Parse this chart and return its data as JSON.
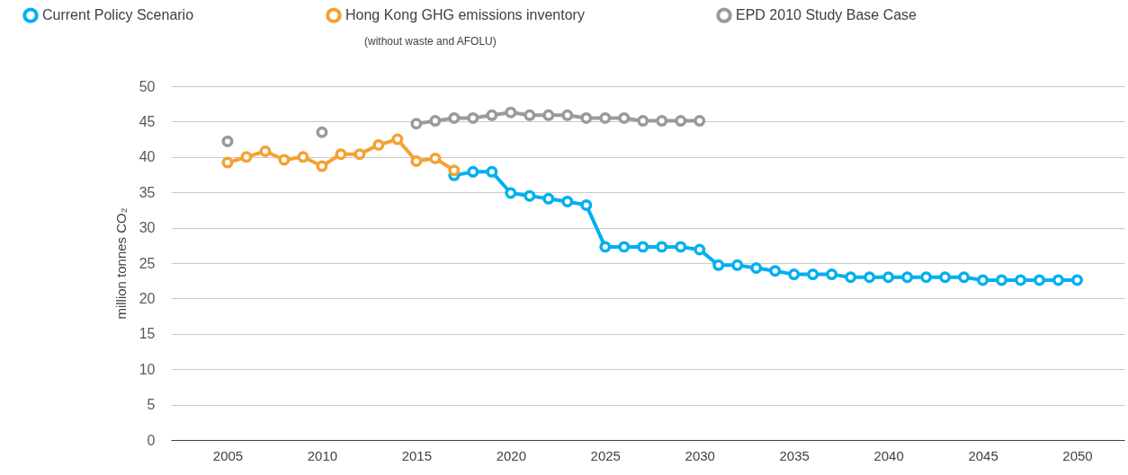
{
  "chart_data": {
    "type": "line",
    "ylabel": "million tonnes CO₂",
    "annotations": [
      "(without waste and AFOLU)"
    ],
    "x": [
      2005,
      2006,
      2007,
      2008,
      2009,
      2010,
      2011,
      2012,
      2013,
      2014,
      2015,
      2016,
      2017,
      2018,
      2019,
      2020,
      2021,
      2022,
      2023,
      2024,
      2025,
      2026,
      2027,
      2028,
      2029,
      2030,
      2031,
      2032,
      2033,
      2034,
      2035,
      2036,
      2037,
      2038,
      2039,
      2040,
      2041,
      2042,
      2043,
      2044,
      2045,
      2046,
      2047,
      2048,
      2049,
      2050
    ],
    "series": [
      {
        "name": "Current Policy Scenario",
        "color": "#00b0f0",
        "values": [
          null,
          null,
          null,
          null,
          null,
          null,
          null,
          null,
          null,
          null,
          null,
          null,
          37.4,
          37.9,
          37.9,
          34.9,
          34.5,
          34.1,
          33.7,
          33.2,
          27.3,
          27.3,
          27.3,
          27.3,
          27.3,
          26.9,
          24.7,
          24.7,
          24.3,
          23.9,
          23.4,
          23.4,
          23.4,
          23.0,
          23.0,
          23.0,
          23.0,
          23.0,
          23.0,
          23.0,
          22.6,
          22.6,
          22.6,
          22.6,
          22.6,
          22.6
        ]
      },
      {
        "name": "Hong Kong GHG emissions inventory",
        "color": "#f4a134",
        "values": [
          39.2,
          40.0,
          40.8,
          39.6,
          40.0,
          38.7,
          40.4,
          40.4,
          41.7,
          42.5,
          39.4,
          39.8,
          38.1,
          null,
          null,
          null,
          null,
          null,
          null,
          null,
          null,
          null,
          null,
          null,
          null,
          null,
          null,
          null,
          null,
          null,
          null,
          null,
          null,
          null,
          null,
          null,
          null,
          null,
          null,
          null,
          null,
          null,
          null,
          null,
          null,
          null
        ]
      },
      {
        "name": "EPD 2010 Study Base Case",
        "color": "#9a9a9c",
        "values": [
          42.2,
          null,
          null,
          null,
          null,
          43.5,
          null,
          null,
          null,
          null,
          44.7,
          45.1,
          45.5,
          45.5,
          45.9,
          46.3,
          45.9,
          45.9,
          45.9,
          45.5,
          45.5,
          45.5,
          45.1,
          45.1,
          45.1,
          45.1,
          null,
          null,
          null,
          null,
          null,
          null,
          null,
          null,
          null,
          null,
          null,
          null,
          null,
          null,
          null,
          null,
          null,
          null,
          null,
          null
        ]
      }
    ],
    "xlim": [
      2002,
      2052.5
    ],
    "xticks": [
      2005,
      2010,
      2015,
      2020,
      2025,
      2030,
      2035,
      2040,
      2045,
      2050
    ],
    "ylim": [
      0,
      50
    ],
    "yticks": [
      0,
      5,
      10,
      15,
      20,
      25,
      30,
      35,
      40,
      45,
      50
    ],
    "grid": "y",
    "legend": "top",
    "marker": "circle",
    "line_style": "solid"
  }
}
